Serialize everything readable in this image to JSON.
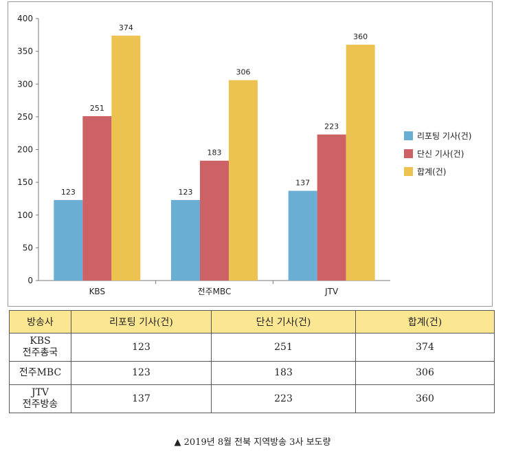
{
  "chart_data": {
    "type": "bar",
    "categories": [
      "KBS",
      "전주MBC",
      "JTV"
    ],
    "series": [
      {
        "name": "리포팅 기사(건)",
        "values": [
          123,
          123,
          137
        ],
        "color": "#6aaed3"
      },
      {
        "name": "단신 기사(건)",
        "values": [
          251,
          183,
          223
        ],
        "color": "#cc6166"
      },
      {
        "name": "합계(건)",
        "values": [
          374,
          306,
          360
        ],
        "color": "#ecc351"
      }
    ],
    "yticks": [
      0,
      50,
      100,
      150,
      200,
      250,
      300,
      350,
      400
    ],
    "ylim": [
      0,
      400
    ],
    "grid": false,
    "legend_position": "right"
  },
  "table": {
    "headers": [
      "방송사",
      "리포팅 기사(건)",
      "단신 기사(건)",
      "합계(건)"
    ],
    "rows": [
      {
        "station": [
          "KBS",
          "전주총국"
        ],
        "reporting": "123",
        "brief": "251",
        "total": "374"
      },
      {
        "station": [
          "전주MBC"
        ],
        "reporting": "123",
        "brief": "183",
        "total": "306"
      },
      {
        "station": [
          "JTV",
          "전주방송"
        ],
        "reporting": "137",
        "brief": "223",
        "total": "360"
      }
    ]
  },
  "caption": "▲ 2019년 8월 전북 지역방송 3사 보도량"
}
